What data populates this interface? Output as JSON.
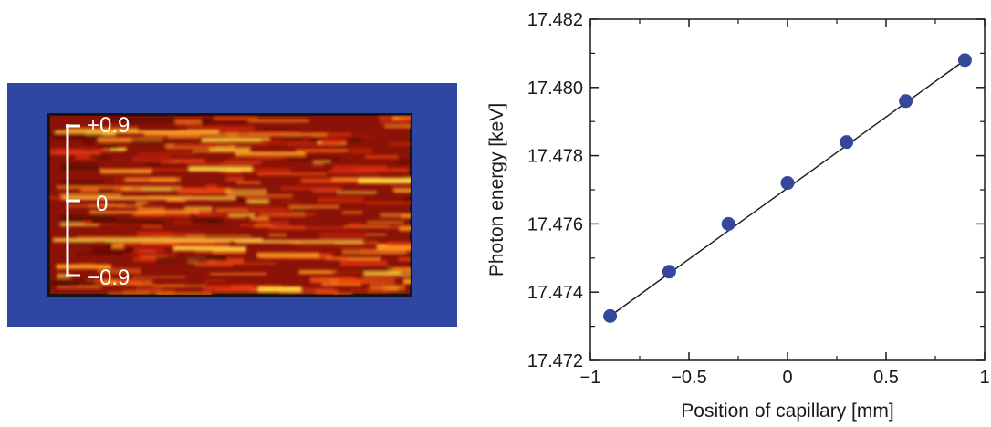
{
  "detector": {
    "background_color": "#2f46a3",
    "scale_labels": [
      "+0.9",
      "0",
      "−0.9"
    ]
  },
  "chart_data": {
    "type": "scatter",
    "xlabel": "Position of capillary [mm]",
    "ylabel": "Photon energy [keV]",
    "xlim": [
      -1,
      1
    ],
    "ylim": [
      17.472,
      17.482
    ],
    "xticks": [
      -1,
      -0.5,
      0,
      0.5,
      1
    ],
    "xtick_labels": [
      "−1",
      "−0.5",
      "0",
      "0.5",
      "1"
    ],
    "yticks": [
      17.472,
      17.474,
      17.476,
      17.478,
      17.48,
      17.482
    ],
    "ytick_labels": [
      "17.472",
      "17.474",
      "17.476",
      "17.478",
      "17.480",
      "17.482"
    ],
    "series": [
      {
        "x": [
          -0.9,
          -0.6,
          -0.3,
          0.0,
          0.3,
          0.6,
          0.9
        ],
        "y": [
          17.4733,
          17.4746,
          17.476,
          17.4772,
          17.4784,
          17.4796,
          17.4808
        ],
        "marker_color": "#35489a"
      }
    ],
    "fit_line": {
      "x": [
        -0.9,
        0.9
      ],
      "y": [
        17.4733,
        17.4808
      ]
    },
    "grid": false
  }
}
